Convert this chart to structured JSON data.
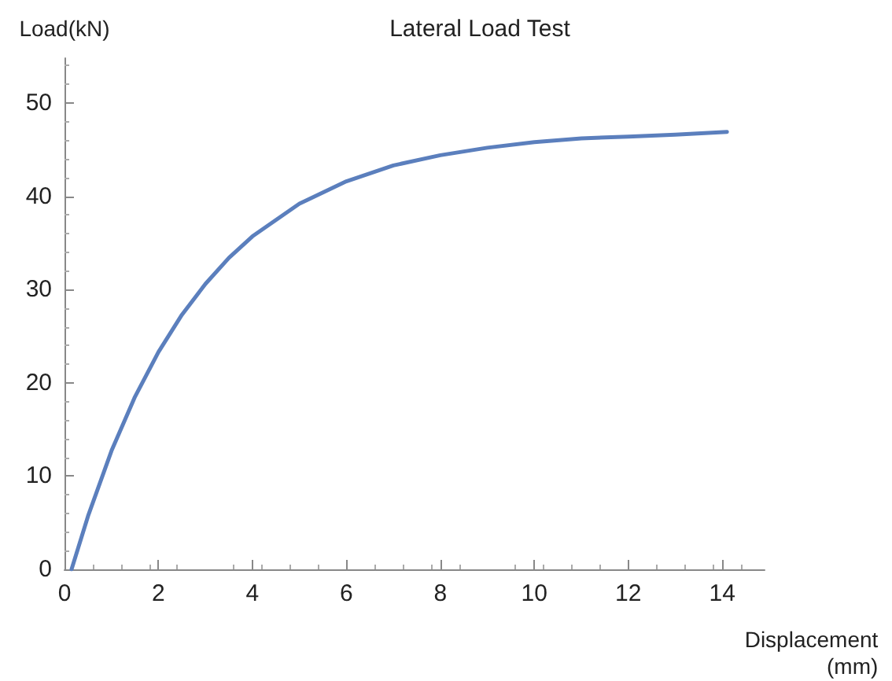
{
  "chart_data": {
    "type": "line",
    "title": "Lateral Load Test",
    "xlabel": "Displacement (mm)",
    "ylabel": "Load(kN)",
    "series": [
      {
        "color": "#5b7fbd",
        "x": [
          0.15,
          0.5,
          1,
          1.5,
          2,
          2.5,
          3,
          3.5,
          4,
          5,
          6,
          7,
          8,
          9,
          10,
          11,
          12,
          13,
          14.1
        ],
        "values": [
          0,
          5.7,
          12.7,
          18.5,
          23.3,
          27.3,
          30.6,
          33.4,
          35.7,
          39.2,
          41.6,
          43.3,
          44.4,
          45.2,
          45.8,
          46.2,
          46.4,
          46.6,
          46.9
        ]
      }
    ],
    "xlim": [
      0,
      14.9
    ],
    "xticks": [
      0,
      2,
      4,
      6,
      8,
      10,
      12,
      14
    ],
    "ylim": [
      0,
      54.8
    ],
    "yticks": [
      0,
      10,
      20,
      30,
      40,
      50
    ],
    "grid": false,
    "marker": "none",
    "line_style": "solid"
  }
}
